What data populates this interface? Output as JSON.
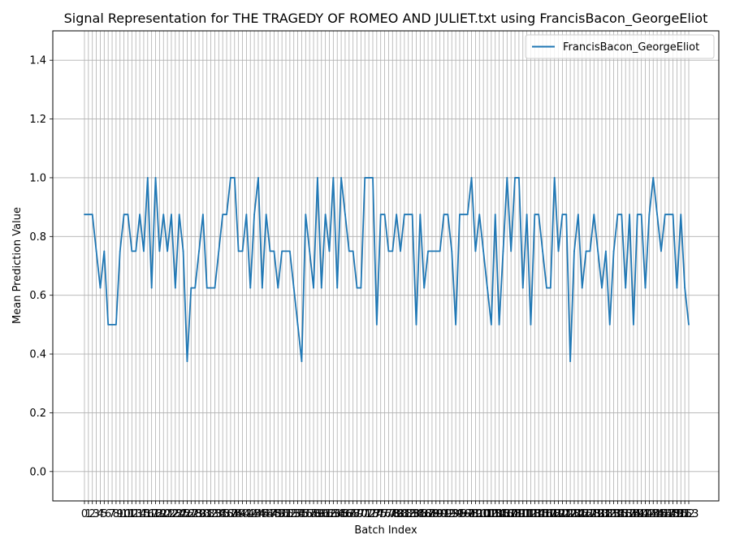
{
  "chart_data": {
    "type": "line",
    "title": "Signal Representation for THE TRAGEDY OF ROMEO AND JULIET.txt using FrancisBacon_GeorgeEliot",
    "xlabel": "Batch Index",
    "ylabel": "Mean Prediction Value",
    "ylim": [
      -0.1,
      1.5
    ],
    "yticks": [
      "0.0",
      "0.2",
      "0.4",
      "0.6",
      "0.8",
      "1.0",
      "1.2",
      "1.4"
    ],
    "grid": true,
    "legend_position": "top-right",
    "series": [
      {
        "name": "FrancisBacon_GeorgeEliot",
        "color": "#1f77b4",
        "values": [
          0.875,
          0.875,
          0.875,
          0.75,
          0.625,
          0.75,
          0.5,
          0.5,
          0.5,
          0.75,
          0.875,
          0.875,
          0.75,
          0.75,
          0.875,
          0.75,
          1.0,
          0.625,
          1.0,
          0.75,
          0.875,
          0.75,
          0.875,
          0.625,
          0.875,
          0.75,
          0.375,
          0.625,
          0.625,
          0.75,
          0.875,
          0.625,
          0.625,
          0.625,
          0.75,
          0.875,
          0.875,
          1.0,
          1.0,
          0.75,
          0.75,
          0.875,
          0.625,
          0.875,
          1.0,
          0.625,
          0.875,
          0.75,
          0.75,
          0.625,
          0.75,
          0.75,
          0.75,
          0.625,
          0.5,
          0.375,
          0.875,
          0.75,
          0.625,
          1.0,
          0.625,
          0.875,
          0.75,
          1.0,
          0.625,
          1.0,
          0.875,
          0.75,
          0.75,
          0.625,
          0.625,
          1.0,
          1.0,
          1.0,
          0.5,
          0.875,
          0.875,
          0.75,
          0.75,
          0.875,
          0.75,
          0.875,
          0.875,
          0.875,
          0.5,
          0.875,
          0.625,
          0.75,
          0.75,
          0.75,
          0.75,
          0.875,
          0.875,
          0.75,
          0.5,
          0.875,
          0.875,
          0.875,
          1.0,
          0.75,
          0.875,
          0.75,
          0.625,
          0.5,
          0.875,
          0.5,
          0.75,
          1.0,
          0.75,
          1.0,
          1.0,
          0.625,
          0.875,
          0.5,
          0.875,
          0.875,
          0.75,
          0.625,
          0.625,
          1.0,
          0.75,
          0.875,
          0.875,
          0.375,
          0.75,
          0.875,
          0.625,
          0.75,
          0.75,
          0.875,
          0.75,
          0.625,
          0.75,
          0.5,
          0.75,
          0.875,
          0.875,
          0.625,
          0.875,
          0.5,
          0.875,
          0.875,
          0.625,
          0.875,
          1.0,
          0.875,
          0.75,
          0.875,
          0.875,
          0.875,
          0.625,
          0.875,
          0.625,
          0.5
        ]
      }
    ]
  }
}
